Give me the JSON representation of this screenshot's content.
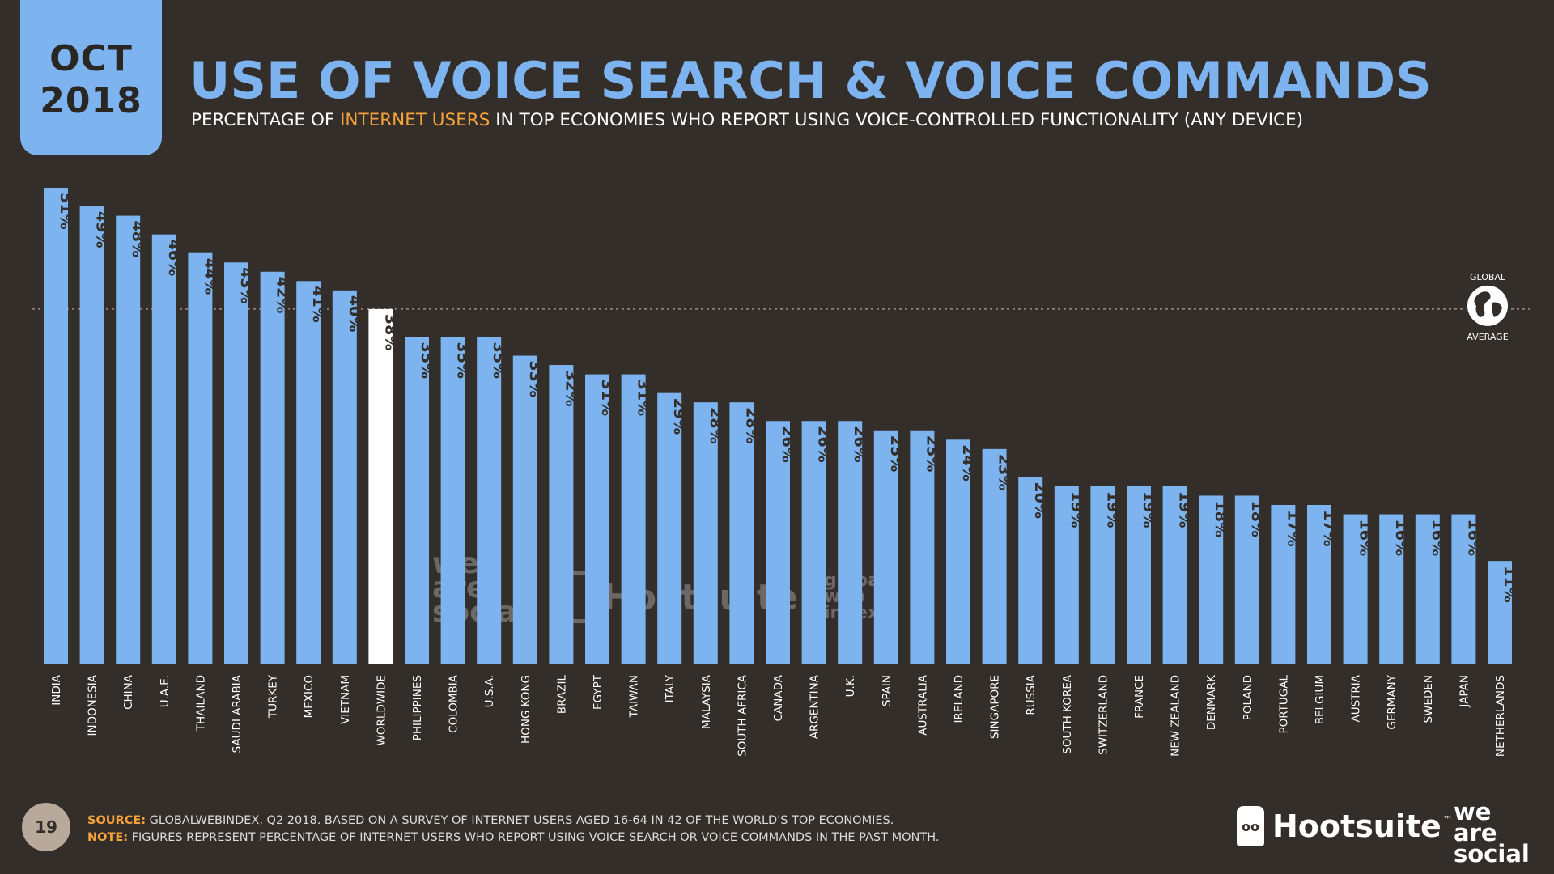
{
  "header": {
    "month": "OCT",
    "year": "2018",
    "title": "USE OF VOICE SEARCH & VOICE COMMANDS",
    "subtitle_before": "PERCENTAGE OF ",
    "subtitle_highlight": "INTERNET USERS",
    "subtitle_after": " IN TOP ECONOMIES WHO REPORT USING VOICE-CONTROLLED FUNCTIONALITY (ANY DEVICE)"
  },
  "global_average_badge": {
    "line1": "GLOBAL",
    "line2": "AVERAGE"
  },
  "chart_data": {
    "type": "bar",
    "categories": [
      "INDIA",
      "INDONESIA",
      "CHINA",
      "U.A.E.",
      "THAILAND",
      "SAUDI ARABIA",
      "TURKEY",
      "MEXICO",
      "VIETNAM",
      "WORLDWIDE",
      "PHILIPPINES",
      "COLOMBIA",
      "U.S.A.",
      "HONG KONG",
      "BRAZIL",
      "EGYPT",
      "TAIWAN",
      "ITALY",
      "MALAYSIA",
      "SOUTH AFRICA",
      "CANADA",
      "ARGENTINA",
      "U.K.",
      "SPAIN",
      "AUSTRALIA",
      "IRELAND",
      "SINGAPORE",
      "RUSSIA",
      "SOUTH KOREA",
      "SWITZERLAND",
      "FRANCE",
      "NEW ZEALAND",
      "DENMARK",
      "POLAND",
      "PORTUGAL",
      "BELGIUM",
      "AUSTRIA",
      "GERMANY",
      "SWEDEN",
      "JAPAN",
      "NETHERLANDS"
    ],
    "values": [
      51,
      49,
      48,
      46,
      44,
      43,
      42,
      41,
      40,
      38,
      35,
      35,
      35,
      33,
      32,
      31,
      31,
      29,
      28,
      28,
      26,
      26,
      26,
      25,
      25,
      24,
      23,
      20,
      19,
      19,
      19,
      19,
      18,
      18,
      17,
      17,
      16,
      16,
      16,
      16,
      11
    ],
    "labels": [
      "51%",
      "49%",
      "48%",
      "46%",
      "44%",
      "43%",
      "42%",
      "41%",
      "40%",
      "38%",
      "35%",
      "35%",
      "35%",
      "33%",
      "32%",
      "31%",
      "31%",
      "29%",
      "28%",
      "28%",
      "26%",
      "26%",
      "26%",
      "25%",
      "25%",
      "24%",
      "23%",
      "20%",
      "19%",
      "19%",
      "19%",
      "19%",
      "18%",
      "18%",
      "17%",
      "17%",
      "16%",
      "16%",
      "16%",
      "16%",
      "11%"
    ],
    "highlight_category": "WORLDWIDE",
    "global_average": 38,
    "ylim": [
      0,
      51
    ],
    "colors": {
      "bar": "#7db4ef",
      "highlight": "#ffffff",
      "background": "#332e2a"
    },
    "grid": false,
    "value_label_rotation": "vertical",
    "category_label_rotation": "vertical"
  },
  "watermarks": {
    "we_are_social": [
      "we",
      "are",
      "social"
    ],
    "hootsuite": "Hootsuite",
    "gwi": [
      "global",
      "web",
      "index"
    ]
  },
  "footer": {
    "page_number": "19",
    "source_label": "SOURCE:",
    "source_text": " GLOBALWEBINDEX, Q2 2018. BASED ON A SURVEY OF INTERNET USERS AGED 16-64 IN 42 OF THE WORLD'S TOP ECONOMIES.",
    "note_label": "NOTE:",
    "note_text": " FIGURES REPRESENT PERCENTAGE OF INTERNET USERS WHO REPORT USING VOICE SEARCH OR VOICE COMMANDS IN THE PAST MONTH."
  },
  "logos": {
    "hootsuite": "Hootsuite",
    "hootsuite_tm": "™",
    "we_are_social": [
      "we",
      "are",
      "social"
    ]
  }
}
